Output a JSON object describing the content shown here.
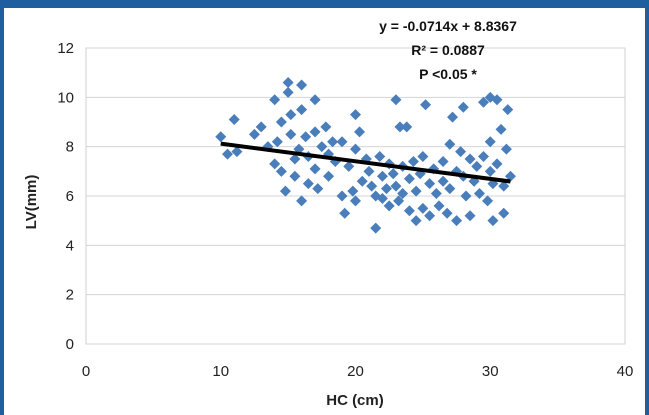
{
  "chart_data": {
    "type": "scatter",
    "xlabel": "HC (cm)",
    "ylabel": "LV(mm)",
    "xlim": [
      0,
      40
    ],
    "ylim": [
      0,
      12
    ],
    "x_ticks": [
      "0",
      "10",
      "20",
      "30",
      "40"
    ],
    "y_ticks": [
      "0",
      "2",
      "4",
      "6",
      "8",
      "10",
      "12"
    ],
    "grid": "horizontal",
    "marker_color": "#4a7ebb",
    "trendline_color": "#000000",
    "annotations": [
      "y = -0.0714x + 8.8367",
      "R² = 0.0887",
      "P <0.05 *"
    ],
    "trendline": {
      "slope": -0.0714,
      "intercept": 8.8367,
      "x_range": [
        10,
        31.5
      ]
    },
    "points": [
      [
        10,
        8.4
      ],
      [
        10.5,
        7.7
      ],
      [
        11,
        9.1
      ],
      [
        11.2,
        7.8
      ],
      [
        12.5,
        8.5
      ],
      [
        13,
        8.8
      ],
      [
        13.5,
        8.0
      ],
      [
        14,
        9.9
      ],
      [
        14,
        7.3
      ],
      [
        14.2,
        8.2
      ],
      [
        14.5,
        9.0
      ],
      [
        14.5,
        7.0
      ],
      [
        14.8,
        6.2
      ],
      [
        15,
        10.6
      ],
      [
        15,
        10.2
      ],
      [
        15.2,
        9.3
      ],
      [
        15.2,
        8.5
      ],
      [
        15.5,
        7.5
      ],
      [
        15.5,
        6.8
      ],
      [
        15.8,
        7.9
      ],
      [
        16,
        10.5
      ],
      [
        16,
        9.5
      ],
      [
        16,
        5.8
      ],
      [
        16.3,
        8.4
      ],
      [
        16.5,
        7.6
      ],
      [
        16.5,
        6.5
      ],
      [
        17,
        9.9
      ],
      [
        17,
        8.6
      ],
      [
        17,
        7.1
      ],
      [
        17.2,
        6.3
      ],
      [
        17.5,
        8.0
      ],
      [
        17.8,
        8.8
      ],
      [
        18,
        7.7
      ],
      [
        18,
        6.8
      ],
      [
        18.3,
        8.2
      ],
      [
        18.5,
        7.4
      ],
      [
        19,
        8.2
      ],
      [
        19,
        6.0
      ],
      [
        19.2,
        5.3
      ],
      [
        19.5,
        7.2
      ],
      [
        19.8,
        6.2
      ],
      [
        20,
        9.3
      ],
      [
        20,
        7.9
      ],
      [
        20,
        5.8
      ],
      [
        20.3,
        8.6
      ],
      [
        20.5,
        6.6
      ],
      [
        20.8,
        7.5
      ],
      [
        21,
        7.0
      ],
      [
        21.2,
        6.4
      ],
      [
        21.5,
        6.0
      ],
      [
        21.5,
        4.7
      ],
      [
        21.8,
        7.6
      ],
      [
        22,
        6.8
      ],
      [
        22,
        5.9
      ],
      [
        22.3,
        6.3
      ],
      [
        22.5,
        7.3
      ],
      [
        22.5,
        5.6
      ],
      [
        22.8,
        6.9
      ],
      [
        23,
        9.9
      ],
      [
        23,
        6.4
      ],
      [
        23.2,
        5.8
      ],
      [
        23.3,
        8.8
      ],
      [
        23.5,
        7.2
      ],
      [
        23.5,
        6.1
      ],
      [
        23.8,
        8.8
      ],
      [
        24,
        6.7
      ],
      [
        24,
        5.4
      ],
      [
        24.3,
        7.4
      ],
      [
        24.5,
        6.2
      ],
      [
        24.5,
        5.0
      ],
      [
        24.8,
        6.9
      ],
      [
        25,
        7.6
      ],
      [
        25,
        5.5
      ],
      [
        25.2,
        9.7
      ],
      [
        25.5,
        6.5
      ],
      [
        25.5,
        5.2
      ],
      [
        25.8,
        7.1
      ],
      [
        26,
        6.1
      ],
      [
        26.2,
        5.6
      ],
      [
        26.5,
        7.4
      ],
      [
        26.5,
        6.6
      ],
      [
        26.8,
        5.3
      ],
      [
        27,
        8.1
      ],
      [
        27,
        6.3
      ],
      [
        27.2,
        9.2
      ],
      [
        27.5,
        7.0
      ],
      [
        27.5,
        5.0
      ],
      [
        27.8,
        7.8
      ],
      [
        28,
        9.6
      ],
      [
        28,
        6.8
      ],
      [
        28.2,
        6.0
      ],
      [
        28.5,
        7.5
      ],
      [
        28.5,
        5.2
      ],
      [
        28.8,
        6.6
      ],
      [
        29,
        7.2
      ],
      [
        29.2,
        6.1
      ],
      [
        29.5,
        9.8
      ],
      [
        29.5,
        7.6
      ],
      [
        29.8,
        5.8
      ],
      [
        30,
        10.0
      ],
      [
        30,
        8.2
      ],
      [
        30,
        7.0
      ],
      [
        30.2,
        6.5
      ],
      [
        30.2,
        5.0
      ],
      [
        30.5,
        9.9
      ],
      [
        30.5,
        7.3
      ],
      [
        30.8,
        8.7
      ],
      [
        31,
        6.4
      ],
      [
        31,
        5.3
      ],
      [
        31.3,
        9.5
      ],
      [
        31.5,
        6.8
      ],
      [
        31.2,
        7.9
      ]
    ]
  }
}
